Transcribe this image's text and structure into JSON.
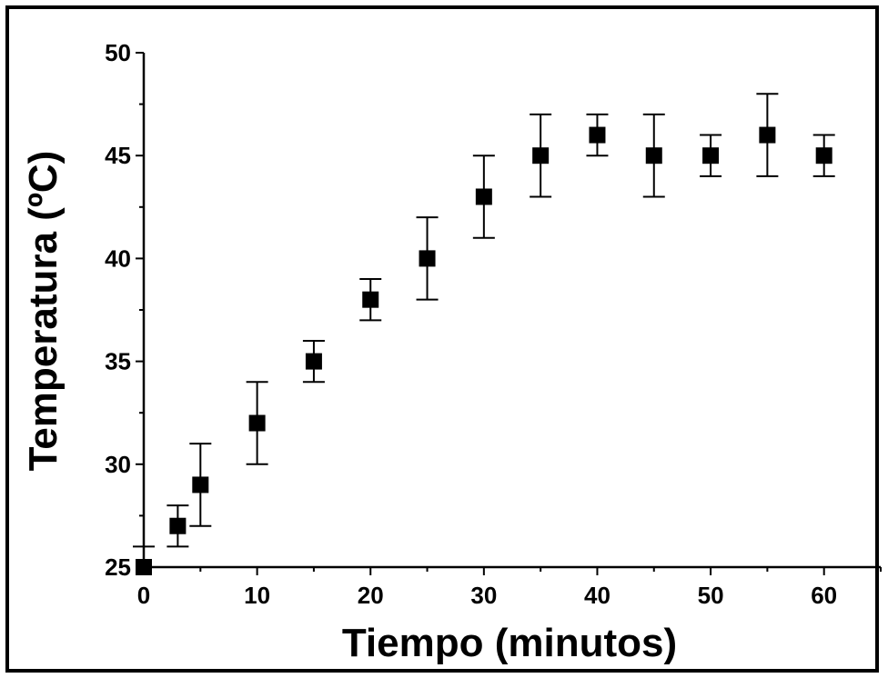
{
  "chart_data": {
    "type": "scatter",
    "title": "",
    "xlabel": "Tiempo (minutos)",
    "ylabel": "Temperatura (ºC)",
    "xlim": [
      0,
      65
    ],
    "ylim": [
      25,
      50
    ],
    "x_ticks": [
      0,
      10,
      20,
      30,
      40,
      50,
      60
    ],
    "y_ticks": [
      25,
      30,
      35,
      40,
      45,
      50
    ],
    "grid": false,
    "marker": "filled-square",
    "color": "#000000",
    "series": [
      {
        "points": [
          {
            "x": 0,
            "y": 25,
            "err_low": 0,
            "err_high": 1
          },
          {
            "x": 3,
            "y": 27,
            "err_low": 1,
            "err_high": 1
          },
          {
            "x": 5,
            "y": 29,
            "err_low": 2,
            "err_high": 2
          },
          {
            "x": 10,
            "y": 32,
            "err_low": 2,
            "err_high": 2
          },
          {
            "x": 15,
            "y": 35,
            "err_low": 1,
            "err_high": 1
          },
          {
            "x": 20,
            "y": 38,
            "err_low": 1,
            "err_high": 1
          },
          {
            "x": 25,
            "y": 40,
            "err_low": 2,
            "err_high": 2
          },
          {
            "x": 30,
            "y": 43,
            "err_low": 2,
            "err_high": 2
          },
          {
            "x": 35,
            "y": 45,
            "err_low": 2,
            "err_high": 2
          },
          {
            "x": 40,
            "y": 46,
            "err_low": 1,
            "err_high": 1
          },
          {
            "x": 45,
            "y": 45,
            "err_low": 2,
            "err_high": 2
          },
          {
            "x": 50,
            "y": 45,
            "err_low": 1,
            "err_high": 1
          },
          {
            "x": 55,
            "y": 46,
            "err_low": 2,
            "err_high": 2
          },
          {
            "x": 60,
            "y": 45,
            "err_low": 1,
            "err_high": 1
          }
        ]
      }
    ]
  }
}
